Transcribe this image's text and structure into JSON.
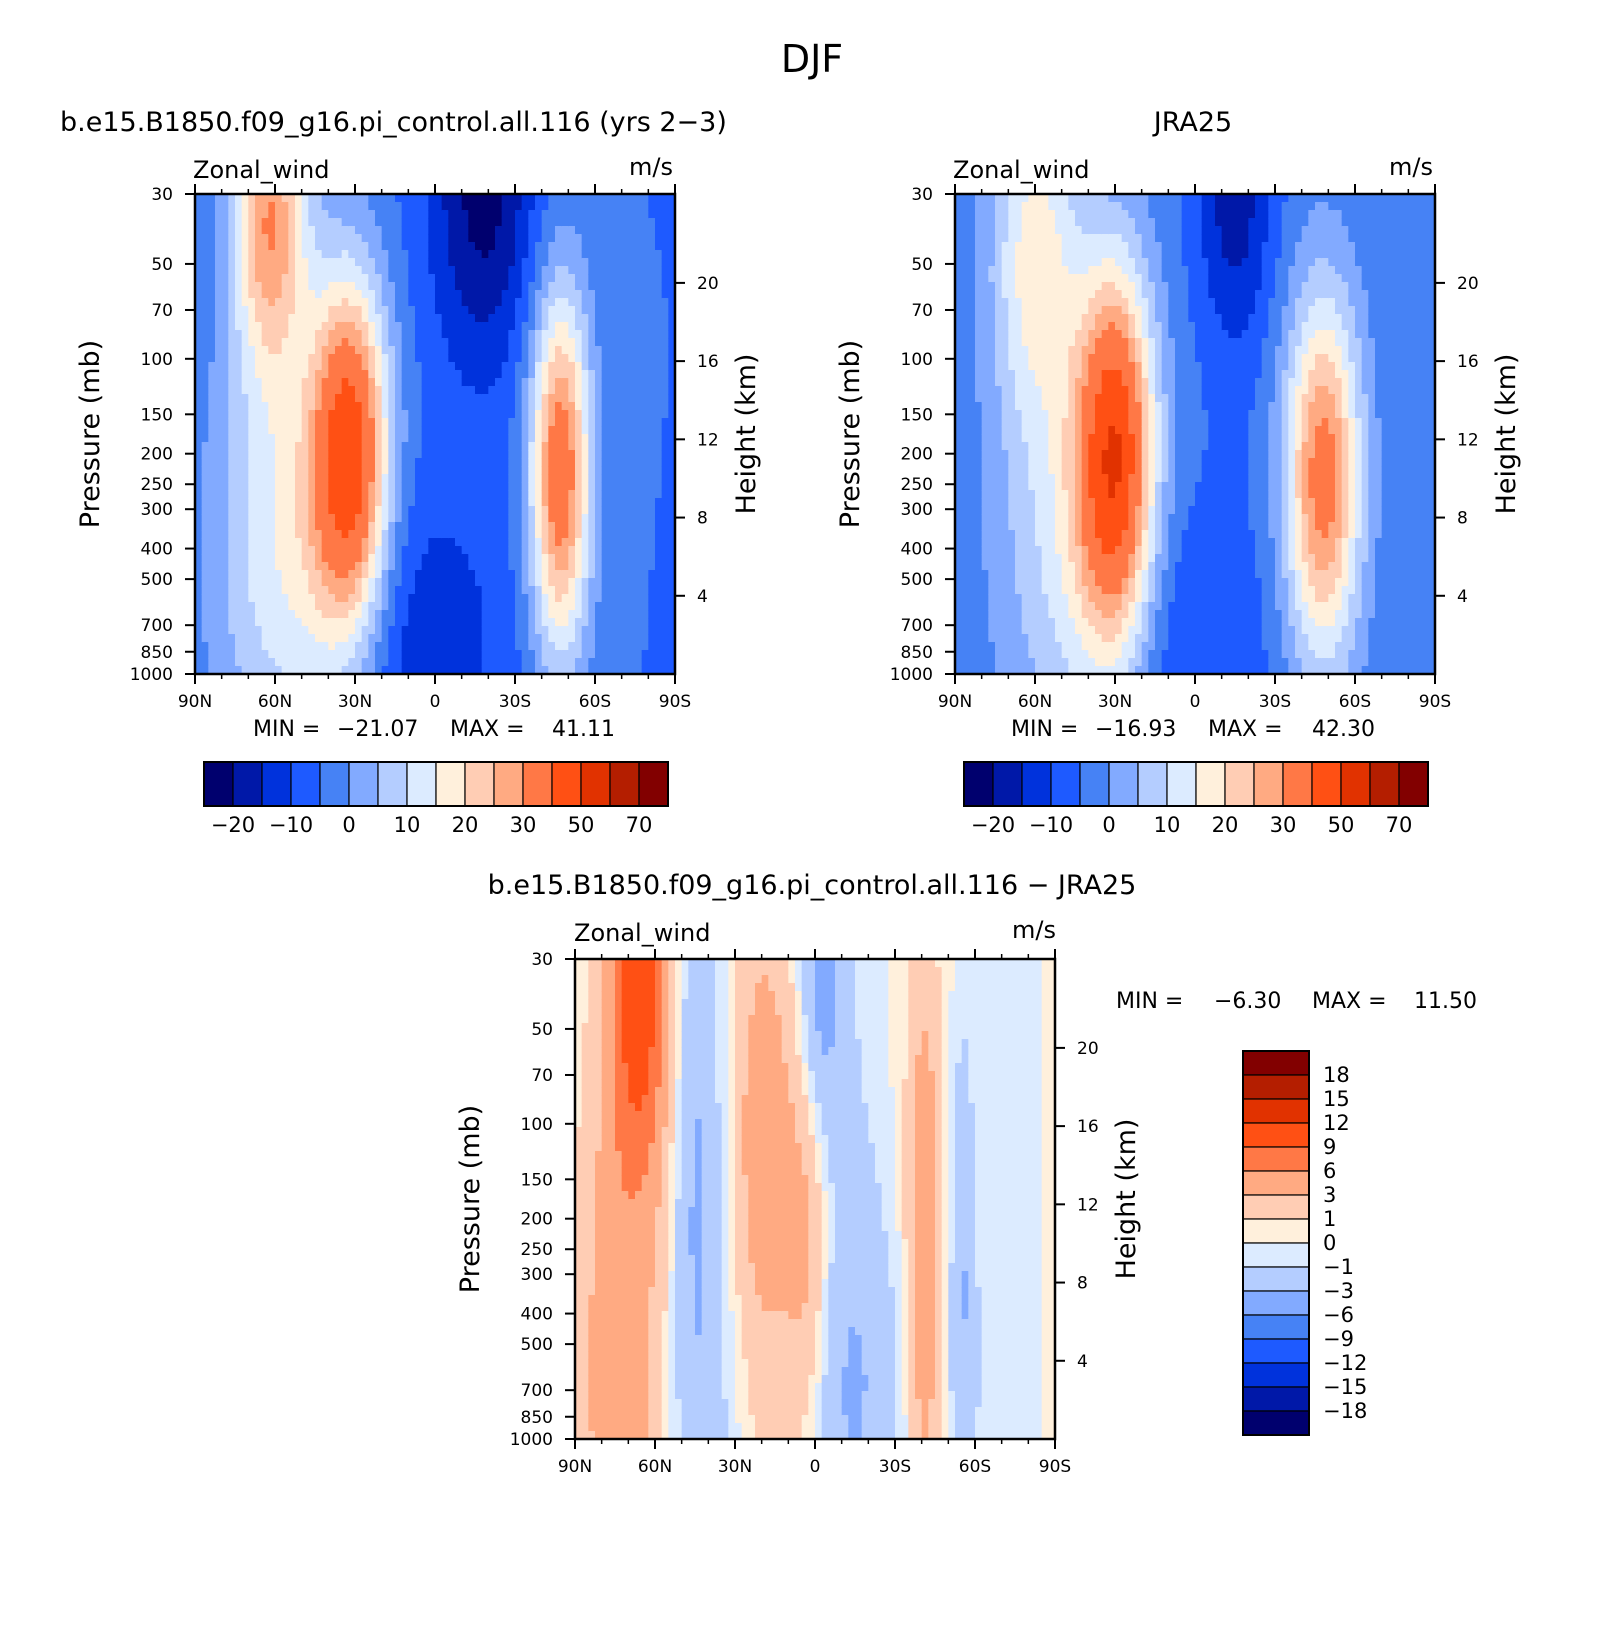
{
  "figure": {
    "title": "DJF"
  },
  "panels": [
    {
      "id": "model",
      "title": "b.e15.B1850.f09_g16.pi_control.all.116 (yrs 2−3)",
      "var_label": "Zonal_wind",
      "units": "m/s",
      "stats": {
        "min_label": "MIN =",
        "min": "−21.07",
        "max_label": "MAX =",
        "max": "41.11"
      }
    },
    {
      "id": "obs",
      "title": "JRA25",
      "var_label": "Zonal_wind",
      "units": "m/s",
      "stats": {
        "min_label": "MIN =",
        "min": "−16.93",
        "max_label": "MAX =",
        "max": "42.30"
      }
    },
    {
      "id": "diff",
      "title": "b.e15.B1850.f09_g16.pi_control.all.116 − JRA25",
      "var_label": "Zonal_wind",
      "units": "m/s",
      "stats": {
        "min_label": "MIN =",
        "min": "−6.30",
        "max_label": "MAX =",
        "max": "11.50"
      }
    }
  ],
  "axes": {
    "ylabel": "Pressure (mb)",
    "y2label": "Height (km)",
    "x_ticks": [
      "90N",
      "60N",
      "30N",
      "0",
      "30S",
      "60S",
      "90S"
    ],
    "y_ticks": [
      "30",
      "50",
      "70",
      "100",
      "150",
      "200",
      "250",
      "300",
      "400",
      "500",
      "700",
      "850",
      "1000"
    ],
    "y2_ticks": [
      "20",
      "16",
      "12",
      "8",
      "4"
    ]
  },
  "colorbars": {
    "abs_labels": [
      "−20",
      "−10",
      "0",
      "10",
      "20",
      "30",
      "50",
      "70"
    ],
    "abs_colors": [
      "#00006e",
      "#0018a8",
      "#0032dc",
      "#1e5aff",
      "#4682f5",
      "#82aaff",
      "#b4cdff",
      "#dcebff",
      "#fff0dc",
      "#ffcdb4",
      "#ffaa82",
      "#ff7846",
      "#ff5014",
      "#e13200",
      "#b41e00",
      "#820000"
    ],
    "diff_labels": [
      "18",
      "15",
      "12",
      "9",
      "6",
      "3",
      "1",
      "0",
      "−1",
      "−3",
      "−6",
      "−9",
      "−12",
      "−15",
      "−18"
    ],
    "diff_colors": [
      "#820000",
      "#b41e00",
      "#e13200",
      "#ff5014",
      "#ff7846",
      "#ffaa82",
      "#ffcdb4",
      "#fff0dc",
      "#dcebff",
      "#b4cdff",
      "#82aaff",
      "#4682f5",
      "#1e5aff",
      "#0032dc",
      "#0018a8",
      "#00006e"
    ]
  },
  "chart_data": [
    {
      "type": "heatmap",
      "title": "b.e15.B1850.f09_g16.pi_control.all.116 (yrs 2−3)",
      "xlabel": "",
      "ylabel": "Pressure (mb)",
      "y2label": "Height (km)",
      "variable": "Zonal_wind",
      "units": "m/s",
      "x_range": [
        "90N",
        "90S"
      ],
      "y_range_mb": [
        1000,
        30
      ],
      "y_scale": "log",
      "levels": [
        -25,
        -20,
        -15,
        -10,
        -5,
        0,
        5,
        10,
        15,
        20,
        25,
        30,
        40,
        50,
        60,
        70,
        80
      ],
      "features": [
        {
          "kind": "jet",
          "lat": 32,
          "p_mb": 200,
          "value": 41.1
        },
        {
          "kind": "jet",
          "lat": -47,
          "p_mb": 220,
          "value": 36
        },
        {
          "kind": "stratospheric_jet",
          "lat": 62,
          "p_mb": 30,
          "value": 28
        },
        {
          "kind": "easterly_max",
          "lat": -18,
          "p_mb": 30,
          "value": -21.07
        }
      ],
      "min": -21.07,
      "max": 41.11
    },
    {
      "type": "heatmap",
      "title": "JRA25",
      "xlabel": "",
      "ylabel": "Pressure (mb)",
      "y2label": "Height (km)",
      "variable": "Zonal_wind",
      "units": "m/s",
      "x_range": [
        "90N",
        "90S"
      ],
      "y_range_mb": [
        1000,
        30
      ],
      "y_scale": "log",
      "levels": [
        -25,
        -20,
        -15,
        -10,
        -5,
        0,
        5,
        10,
        15,
        20,
        25,
        30,
        40,
        50,
        60,
        70,
        80
      ],
      "features": [
        {
          "kind": "jet",
          "lat": 30,
          "p_mb": 200,
          "value": 42.3
        },
        {
          "kind": "jet",
          "lat": -48,
          "p_mb": 230,
          "value": 33
        },
        {
          "kind": "stratospheric_jet",
          "lat": 60,
          "p_mb": 40,
          "value": 15
        },
        {
          "kind": "easterly_max",
          "lat": -15,
          "p_mb": 30,
          "value": -16.93
        }
      ],
      "min": -16.93,
      "max": 42.3
    },
    {
      "type": "heatmap",
      "title": "b.e15.B1850.f09_g16.pi_control.all.116 − JRA25",
      "xlabel": "",
      "ylabel": "Pressure (mb)",
      "y2label": "Height (km)",
      "variable": "Zonal_wind",
      "units": "m/s",
      "x_range": [
        "90N",
        "90S"
      ],
      "y_range_mb": [
        1000,
        30
      ],
      "y_scale": "log",
      "levels": [
        -21,
        -18,
        -15,
        -12,
        -9,
        -6,
        -3,
        -1,
        0,
        1,
        3,
        6,
        9,
        12,
        15,
        18,
        21
      ],
      "min": -6.3,
      "max": 11.5
    }
  ]
}
